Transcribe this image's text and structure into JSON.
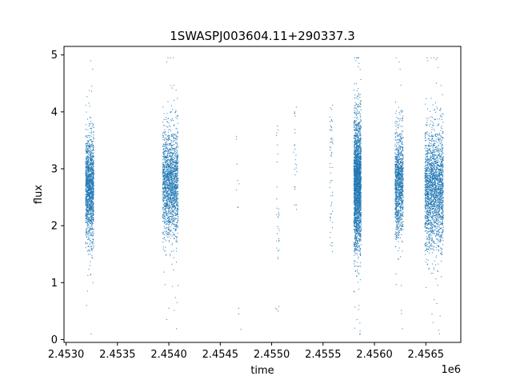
{
  "chart_data": {
    "type": "scatter",
    "title": "1SWASPJ003604.11+290337.3",
    "xlabel": "time",
    "ylabel": "flux",
    "x_offset_label": "1e6",
    "xlim": [
      2.45298,
      2.45684
    ],
    "ylim": [
      -0.05,
      5.15
    ],
    "x_ticks": [
      2.453,
      2.4535,
      2.454,
      2.4545,
      2.455,
      2.4555,
      2.456,
      2.4565
    ],
    "x_tick_labels": [
      "2.4530",
      "2.4535",
      "2.4540",
      "2.4545",
      "2.4550",
      "2.4555",
      "2.4560",
      "2.4565"
    ],
    "y_ticks": [
      0,
      1,
      2,
      3,
      4,
      5
    ],
    "y_tick_labels": [
      "0",
      "1",
      "2",
      "3",
      "4",
      "5"
    ],
    "grid": false,
    "marker_color": "#1f77b4",
    "clusters": [
      {
        "x_start": 2.45319,
        "x_end": 2.45327,
        "y_center": 2.65,
        "y_spread": 0.45,
        "density": 1500
      },
      {
        "x_start": 2.45394,
        "x_end": 2.45409,
        "y_center": 2.75,
        "y_spread": 0.45,
        "density": 1800
      },
      {
        "x_start": 2.4558,
        "x_end": 2.45587,
        "y_center": 2.75,
        "y_spread": 0.55,
        "density": 2500
      },
      {
        "x_start": 2.4562,
        "x_end": 2.45628,
        "y_center": 2.75,
        "y_spread": 0.45,
        "density": 1200
      },
      {
        "x_start": 2.45649,
        "x_end": 2.45667,
        "y_center": 2.65,
        "y_spread": 0.5,
        "density": 2200
      }
    ],
    "sparse_groups": [
      {
        "x": 2.45467,
        "y_min": 1.8,
        "y_max": 3.6,
        "count": 8
      },
      {
        "x": 2.45506,
        "y_min": 1.4,
        "y_max": 3.8,
        "count": 30
      },
      {
        "x": 2.45523,
        "y_min": 2.2,
        "y_max": 4.1,
        "count": 25
      },
      {
        "x": 2.45558,
        "y_min": 1.5,
        "y_max": 4.2,
        "count": 60
      }
    ],
    "outliers": [
      [
        2.45324,
        4.9
      ],
      [
        2.45325,
        4.45
      ],
      [
        2.45323,
        4.1
      ],
      [
        2.45321,
        0.85
      ],
      [
        2.4532,
        0.6
      ],
      [
        2.45326,
        1.0
      ],
      [
        2.45398,
        4.88
      ],
      [
        2.45402,
        4.46
      ],
      [
        2.45405,
        4.2
      ],
      [
        2.454,
        0.55
      ],
      [
        2.45398,
        0.35
      ],
      [
        2.45408,
        0.65
      ],
      [
        2.45409,
        0.95
      ],
      [
        2.45468,
        0.45
      ],
      [
        2.45468,
        0.55
      ],
      [
        2.4547,
        0.18
      ],
      [
        2.45505,
        0.53
      ],
      [
        2.45507,
        0.58
      ],
      [
        2.45506,
        0.5
      ],
      [
        2.45504,
        0.55
      ],
      [
        2.45582,
        4.9
      ],
      [
        2.45584,
        4.95
      ],
      [
        2.45581,
        0.2
      ],
      [
        2.45583,
        0.35
      ],
      [
        2.45586,
        0.15
      ],
      [
        2.45585,
        0.6
      ],
      [
        2.4558,
        0.85
      ],
      [
        2.45624,
        4.88
      ],
      [
        2.45625,
        4.75
      ],
      [
        2.45626,
        0.95
      ],
      [
        2.45621,
        1.15
      ],
      [
        2.45652,
        4.9
      ],
      [
        2.4566,
        4.92
      ],
      [
        2.45662,
        4.78
      ],
      [
        2.45657,
        0.3
      ],
      [
        2.45656,
        0.45
      ],
      [
        2.45658,
        0.7
      ]
    ]
  }
}
